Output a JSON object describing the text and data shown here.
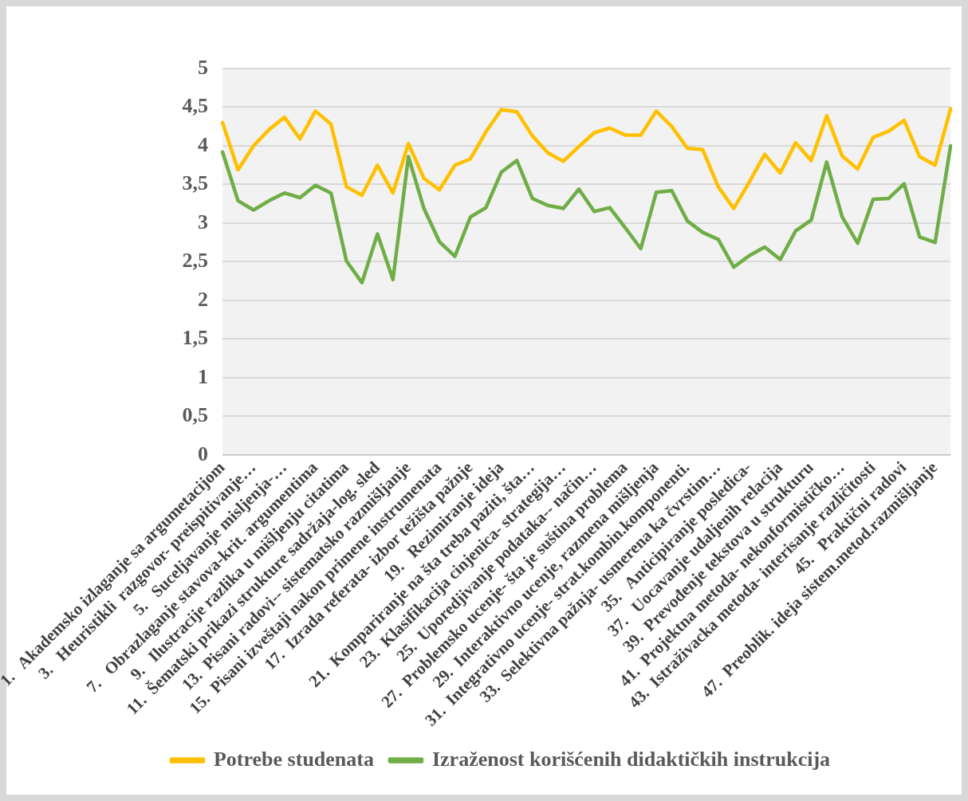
{
  "chart_data": {
    "type": "line",
    "categories": [
      "1.   Akademsko izlaganje sa argumetacijom",
      null,
      "3.   Heuristikli  razgovor- preispitivanje…",
      null,
      "5.   Suceljavanje misljenja-…",
      null,
      "7.   Obrazlaganje stavova-krit. argumentima",
      null,
      "9.   Ilustracije razlika u mišljenju citatima",
      null,
      "11.  Šematski prikazi strukture sadržaja-log. sled",
      null,
      "13.  Pisani radovi-- sistematsko razmišljanje",
      null,
      "15.  Pisani izveštaji nakon primene instrumenata",
      null,
      "17.  Izrada referata- izbor težišta pažnje",
      null,
      "19.   Rezimiranje ideja",
      null,
      "21.  Kompariranje na šta treba paziti, šta…",
      null,
      "23.  Klasifikacija cinjenica- strategija…",
      null,
      "25.  Uporedjivanje podataka-- način…",
      null,
      "27.  Problemsko ucenje- šta je suština problema",
      null,
      "29.  Interaktivno ucenje, razmena mišljenja",
      null,
      "31.  Integrativno ucenje- strat.kombin.komponenti.",
      null,
      "33.  Selektivna pažnja- usmerena ka čvrstim…",
      null,
      "35.   Anticipiranje posledica-",
      null,
      "37.   Uocavanje udaljenih relacija",
      null,
      "39.  Prevođenje tekstova u strukturu",
      null,
      "41.  Projektna metoda- nekonformističko…",
      null,
      "43.  Istraživacka metoda- interisanje različitosti",
      null,
      "45.   Praktični radovi",
      null,
      "47.  Preoblik. ideja sistem.metod.razmišljanje",
      null
    ],
    "series": [
      {
        "name": "Potrebe studenata",
        "color": "#ffc000",
        "values": [
          4.3,
          3.69,
          4.0,
          4.21,
          4.37,
          4.09,
          4.45,
          4.28,
          3.47,
          3.36,
          3.75,
          3.39,
          4.03,
          3.58,
          3.43,
          3.75,
          3.83,
          4.18,
          4.47,
          4.44,
          4.13,
          3.91,
          3.8,
          3.99,
          4.17,
          4.23,
          4.14,
          4.14,
          4.45,
          4.25,
          3.97,
          3.95,
          3.47,
          3.19,
          3.53,
          3.89,
          3.65,
          4.04,
          3.81,
          4.39,
          3.87,
          3.7,
          4.11,
          4.19,
          4.33,
          3.86,
          3.75,
          4.48
        ]
      },
      {
        "name": "Izraženost korišćenih didaktičkih instrukcija",
        "color": "#70ad47",
        "values": [
          3.92,
          3.29,
          3.17,
          3.29,
          3.39,
          3.33,
          3.49,
          3.39,
          2.51,
          2.23,
          2.86,
          2.27,
          3.86,
          3.19,
          2.76,
          2.57,
          3.08,
          3.2,
          3.66,
          3.81,
          3.32,
          3.23,
          3.19,
          3.44,
          3.15,
          3.2,
          2.94,
          2.67,
          3.4,
          3.42,
          3.03,
          2.88,
          2.79,
          2.43,
          2.58,
          2.69,
          2.53,
          2.9,
          3.04,
          3.79,
          3.08,
          2.74,
          3.31,
          3.32,
          3.51,
          2.82,
          2.75,
          4.0
        ]
      }
    ],
    "ylim": [
      0,
      5
    ],
    "yticks": [
      0,
      {
        "value": 0.5,
        "label": "0,5"
      },
      1,
      {
        "value": 1.5,
        "label": "1,5"
      },
      2,
      {
        "value": 2.5,
        "label": "2,5"
      },
      3,
      {
        "value": 3.5,
        "label": "3,5"
      },
      4,
      {
        "value": 4.5,
        "label": "4,5"
      },
      5
    ],
    "grid": "y",
    "legend": "bottom",
    "marker": "none",
    "line_style": "solid"
  }
}
